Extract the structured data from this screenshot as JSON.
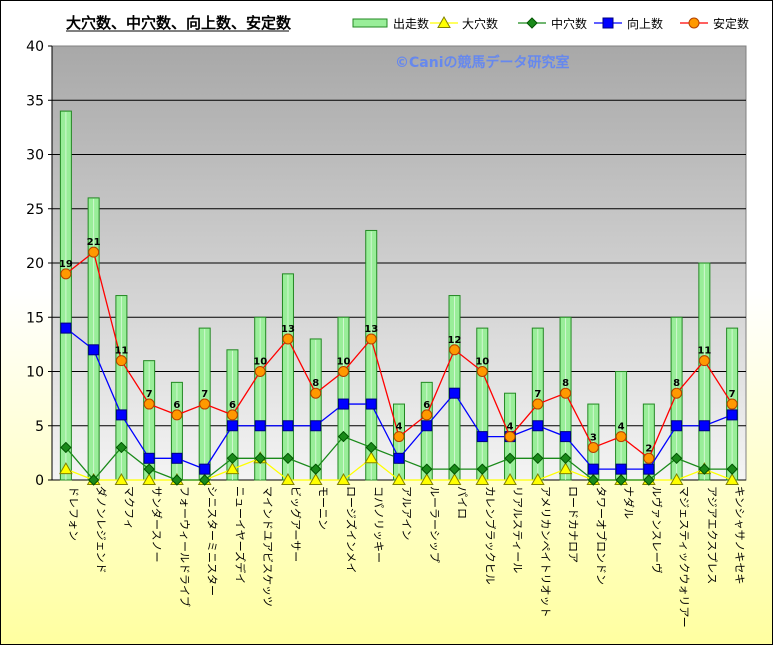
{
  "chart_data": {
    "type": "bar",
    "title": "大穴数、中穴数、向上数、安定数",
    "watermark": "©Caniの競馬データ研究室",
    "ylim": [
      0,
      40
    ],
    "yticks": [
      0,
      5,
      10,
      15,
      20,
      25,
      30,
      35,
      40
    ],
    "categories": [
      "ドレフォン",
      "ダノンレジェンド",
      "マクフィ",
      "サンダースノー",
      "フォーウィールドライブ",
      "シニスターミニスター",
      "ニューイヤーズデイ",
      "マインドユアビスケッツ",
      "ビッグアーサー",
      "モーニン",
      "ロージズインメイ",
      "コパノリッキー",
      "アルアイン",
      "ルーラーシップ",
      "パイロ",
      "カレンブラックヒル",
      "リアルスティール",
      "アメリカンペイトリオット",
      "ロードカナロア",
      "タワーオブロンドン",
      "ナダル",
      "ルヴァンスレーヴ",
      "マジェスティックウォリアー",
      "アジアエクスプレス",
      "キンシャサノキセキ"
    ],
    "series": [
      {
        "name": "出走数",
        "kind": "bar",
        "color": "#99ee99",
        "edge": "#228822",
        "values": [
          34,
          26,
          17,
          11,
          9,
          14,
          12,
          15,
          19,
          13,
          15,
          23,
          7,
          9,
          17,
          14,
          8,
          14,
          15,
          7,
          10,
          7,
          15,
          20,
          14
        ]
      },
      {
        "name": "大穴数",
        "kind": "line",
        "marker": "triangle",
        "color": "#ffff00",
        "edge": "#808000",
        "values": [
          1,
          0,
          0,
          0,
          0,
          0,
          1,
          2,
          0,
          0,
          0,
          2,
          0,
          0,
          0,
          0,
          0,
          0,
          1,
          0,
          0,
          0,
          0,
          1,
          0
        ]
      },
      {
        "name": "中穴数",
        "kind": "line",
        "marker": "diamond",
        "color": "#1a8a1a",
        "edge": "#005500",
        "values": [
          3,
          0,
          3,
          1,
          0,
          0,
          2,
          2,
          2,
          1,
          4,
          3,
          2,
          1,
          1,
          1,
          2,
          2,
          2,
          0,
          0,
          0,
          2,
          1,
          1
        ]
      },
      {
        "name": "向上数",
        "kind": "line",
        "marker": "square",
        "color": "#0000ff",
        "edge": "#000080",
        "values": [
          14,
          12,
          6,
          2,
          2,
          1,
          5,
          5,
          5,
          5,
          7,
          7,
          2,
          5,
          8,
          4,
          4,
          5,
          4,
          1,
          1,
          1,
          5,
          5,
          6
        ]
      },
      {
        "name": "安定数",
        "kind": "line",
        "marker": "circle",
        "color": "#ff0000",
        "edge": "#b24000",
        "marker_fill": "#ff9900",
        "labeled": true,
        "values": [
          19,
          21,
          11,
          7,
          6,
          7,
          6,
          10,
          13,
          8,
          10,
          13,
          4,
          6,
          12,
          10,
          4,
          7,
          8,
          3,
          4,
          2,
          8,
          11,
          7
        ]
      }
    ],
    "legend_position": "top-right",
    "grid": true
  }
}
